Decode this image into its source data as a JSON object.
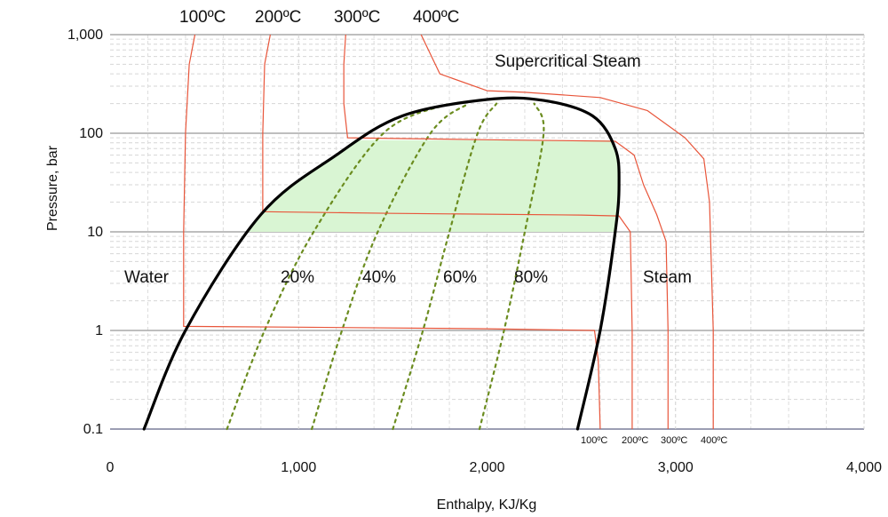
{
  "chart_data": {
    "type": "line",
    "title": "",
    "xlabel": "Enthalpy, KJ/Kg",
    "ylabel": "Pressure, bar",
    "xlim": [
      0,
      4000
    ],
    "ylim": [
      0.1,
      1000
    ],
    "y_scale": "log",
    "x_ticks": [
      0,
      1000,
      2000,
      3000,
      4000
    ],
    "x_tick_labels": [
      "0",
      "1,000",
      "2,000",
      "3,000",
      "4,000"
    ],
    "y_ticks": [
      0.1,
      1,
      10,
      100,
      1000
    ],
    "y_tick_labels": [
      "0.1",
      "1",
      "10",
      "100",
      "1,000"
    ],
    "grid": true,
    "regions": {
      "water": "Water",
      "steam": "Steam",
      "supercritical": "Supercritical Steam"
    },
    "saturation_dome": {
      "color": "#000000",
      "points": [
        [
          180,
          0.1
        ],
        [
          400,
          1
        ],
        [
          800,
          15
        ],
        [
          1200,
          60
        ],
        [
          1550,
          150
        ],
        [
          2000,
          220
        ],
        [
          2300,
          215
        ],
        [
          2560,
          150
        ],
        [
          2680,
          70
        ],
        [
          2700,
          30
        ],
        [
          2680,
          10
        ],
        [
          2600,
          1
        ],
        [
          2480,
          0.1
        ]
      ]
    },
    "shaded_region": {
      "color": "#d9f5d3",
      "pressure_range": [
        10,
        85
      ]
    },
    "isotherms": [
      {
        "top_label": "100ºC",
        "bottom_label": "100ºC",
        "color": "#e8553a",
        "points": [
          [
            450,
            1000
          ],
          [
            420,
            500
          ],
          [
            400,
            100
          ],
          [
            390,
            10
          ],
          [
            390,
            1.1
          ],
          [
            1000,
            1.08
          ],
          [
            2000,
            1.04
          ],
          [
            2570,
            1.0
          ],
          [
            2590,
            0.5
          ],
          [
            2600,
            0.1
          ]
        ]
      },
      {
        "top_label": "200ºC",
        "bottom_label": "200ºC",
        "color": "#e8553a",
        "points": [
          [
            850,
            1000
          ],
          [
            820,
            500
          ],
          [
            810,
            100
          ],
          [
            810,
            16
          ],
          [
            1500,
            15.4
          ],
          [
            2500,
            14.8
          ],
          [
            2700,
            14.5
          ],
          [
            2760,
            10
          ],
          [
            2770,
            1
          ],
          [
            2770,
            0.1
          ]
        ]
      },
      {
        "top_label": "300ºC",
        "bottom_label": "300ºC",
        "color": "#e8553a",
        "points": [
          [
            1250,
            1000
          ],
          [
            1240,
            500
          ],
          [
            1240,
            200
          ],
          [
            1260,
            90
          ],
          [
            2000,
            86
          ],
          [
            2680,
            83
          ],
          [
            2780,
            60
          ],
          [
            2830,
            30
          ],
          [
            2900,
            15
          ],
          [
            2950,
            8
          ],
          [
            2960,
            1
          ],
          [
            2960,
            0.1
          ]
        ]
      },
      {
        "top_label": "400ºC",
        "bottom_label": "400ºC",
        "color": "#e8553a",
        "points": [
          [
            1650,
            1000
          ],
          [
            1750,
            400
          ],
          [
            2000,
            270
          ],
          [
            2200,
            260
          ],
          [
            2600,
            230
          ],
          [
            2850,
            170
          ],
          [
            3050,
            90
          ],
          [
            3150,
            55
          ],
          [
            3180,
            20
          ],
          [
            3200,
            1
          ],
          [
            3200,
            0.1
          ]
        ]
      }
    ],
    "quality_lines": [
      {
        "label": "20%",
        "color": "#6b8c1f",
        "points": [
          [
            620,
            0.1
          ],
          [
            820,
            1
          ],
          [
            1080,
            10
          ],
          [
            1450,
            100
          ],
          [
            1800,
            200
          ]
        ]
      },
      {
        "label": "40%",
        "color": "#6b8c1f",
        "points": [
          [
            1070,
            0.1
          ],
          [
            1230,
            1
          ],
          [
            1420,
            10
          ],
          [
            1700,
            100
          ],
          [
            1900,
            200
          ]
        ]
      },
      {
        "label": "60%",
        "color": "#6b8c1f",
        "points": [
          [
            1500,
            0.1
          ],
          [
            1660,
            1
          ],
          [
            1800,
            10
          ],
          [
            1950,
            100
          ],
          [
            2050,
            200
          ]
        ]
      },
      {
        "label": "80%",
        "color": "#6b8c1f",
        "points": [
          [
            1960,
            0.1
          ],
          [
            2090,
            1
          ],
          [
            2200,
            10
          ],
          [
            2300,
            100
          ],
          [
            2250,
            200
          ]
        ]
      }
    ]
  }
}
